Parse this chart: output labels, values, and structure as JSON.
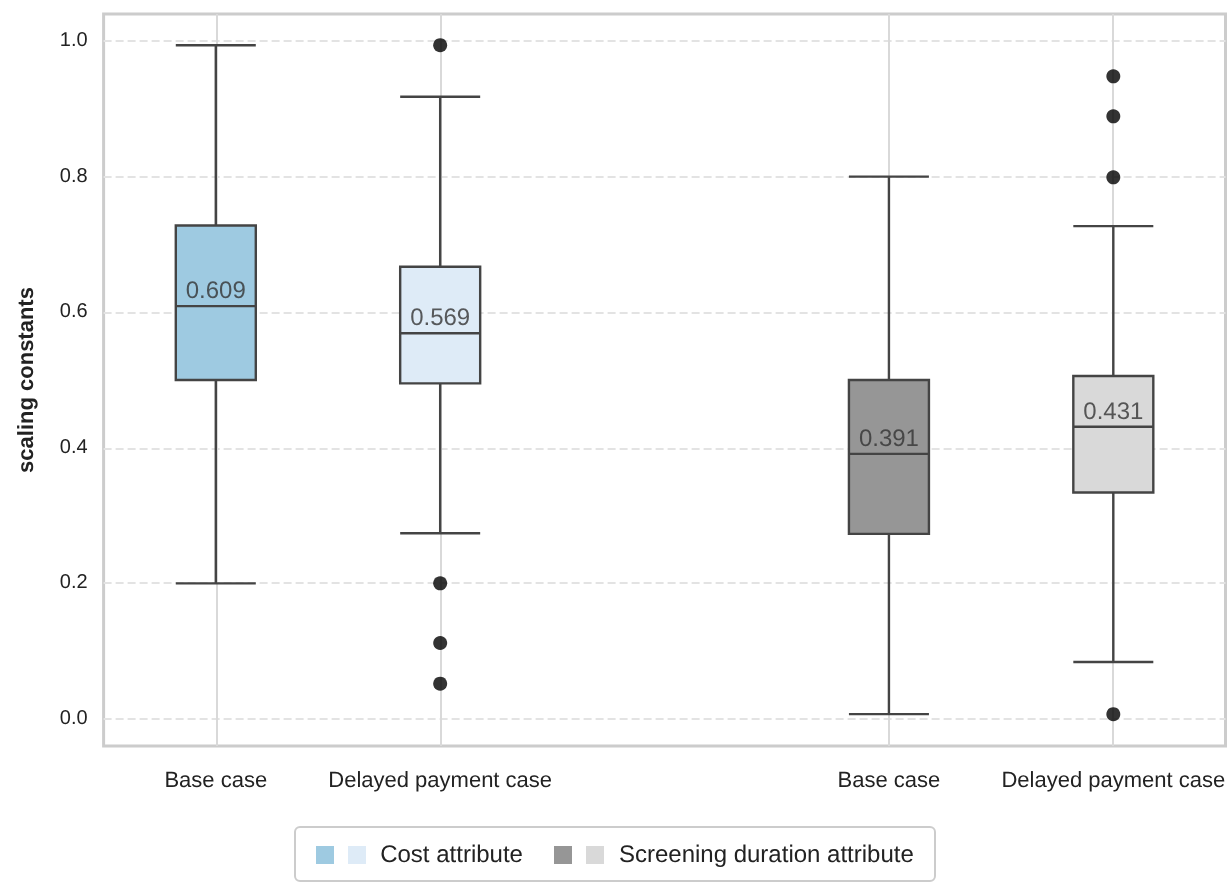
{
  "chart_data": {
    "type": "box",
    "ylabel": "scaling constants",
    "categories": [
      "Base case",
      "Delayed payment case",
      null,
      "Base case",
      "Delayed payment case"
    ],
    "series": [
      {
        "name": "Cost attribute",
        "value_labels": [
          "0.609",
          "0.569",
          null,
          null,
          null
        ],
        "colors": [
          "#9ecae1",
          "#deebf7",
          null,
          null,
          null
        ],
        "boxes": [
          {
            "low": 0.2,
            "q1": 0.5,
            "median": 0.609,
            "q3": 0.728,
            "high": 0.994
          },
          {
            "low": 0.274,
            "q1": 0.495,
            "median": 0.569,
            "q3": 0.667,
            "high": 0.918,
            "outliers": [
              0.994,
              0.2,
              0.112,
              0.052
            ]
          },
          null,
          null,
          null
        ]
      },
      {
        "name": "Screening duration attribute",
        "value_labels": [
          null,
          null,
          null,
          "0.391",
          "0.431"
        ],
        "colors": [
          null,
          null,
          null,
          "#969696",
          "#d9d9d9"
        ],
        "boxes": [
          null,
          null,
          null,
          {
            "low": 0.007,
            "q1": 0.273,
            "median": 0.391,
            "q3": 0.5,
            "high": 0.8
          },
          {
            "low": 0.084,
            "q1": 0.334,
            "median": 0.431,
            "q3": 0.506,
            "high": 0.727,
            "outliers": [
              0.948,
              0.889,
              0.799,
              0.007
            ]
          }
        ]
      }
    ],
    "ylim": [
      -0.04,
      1.04
    ],
    "yticks": [
      {
        "value": 0,
        "label": "0.0"
      },
      {
        "value": 0.2,
        "label": "0.2"
      },
      {
        "value": 0.4,
        "label": "0.4"
      },
      {
        "value": 0.6,
        "label": "0.6"
      },
      {
        "value": 0.8,
        "label": "0.8"
      },
      {
        "value": 1,
        "label": "1.0"
      }
    ],
    "grid": true,
    "legend": "bottom"
  }
}
